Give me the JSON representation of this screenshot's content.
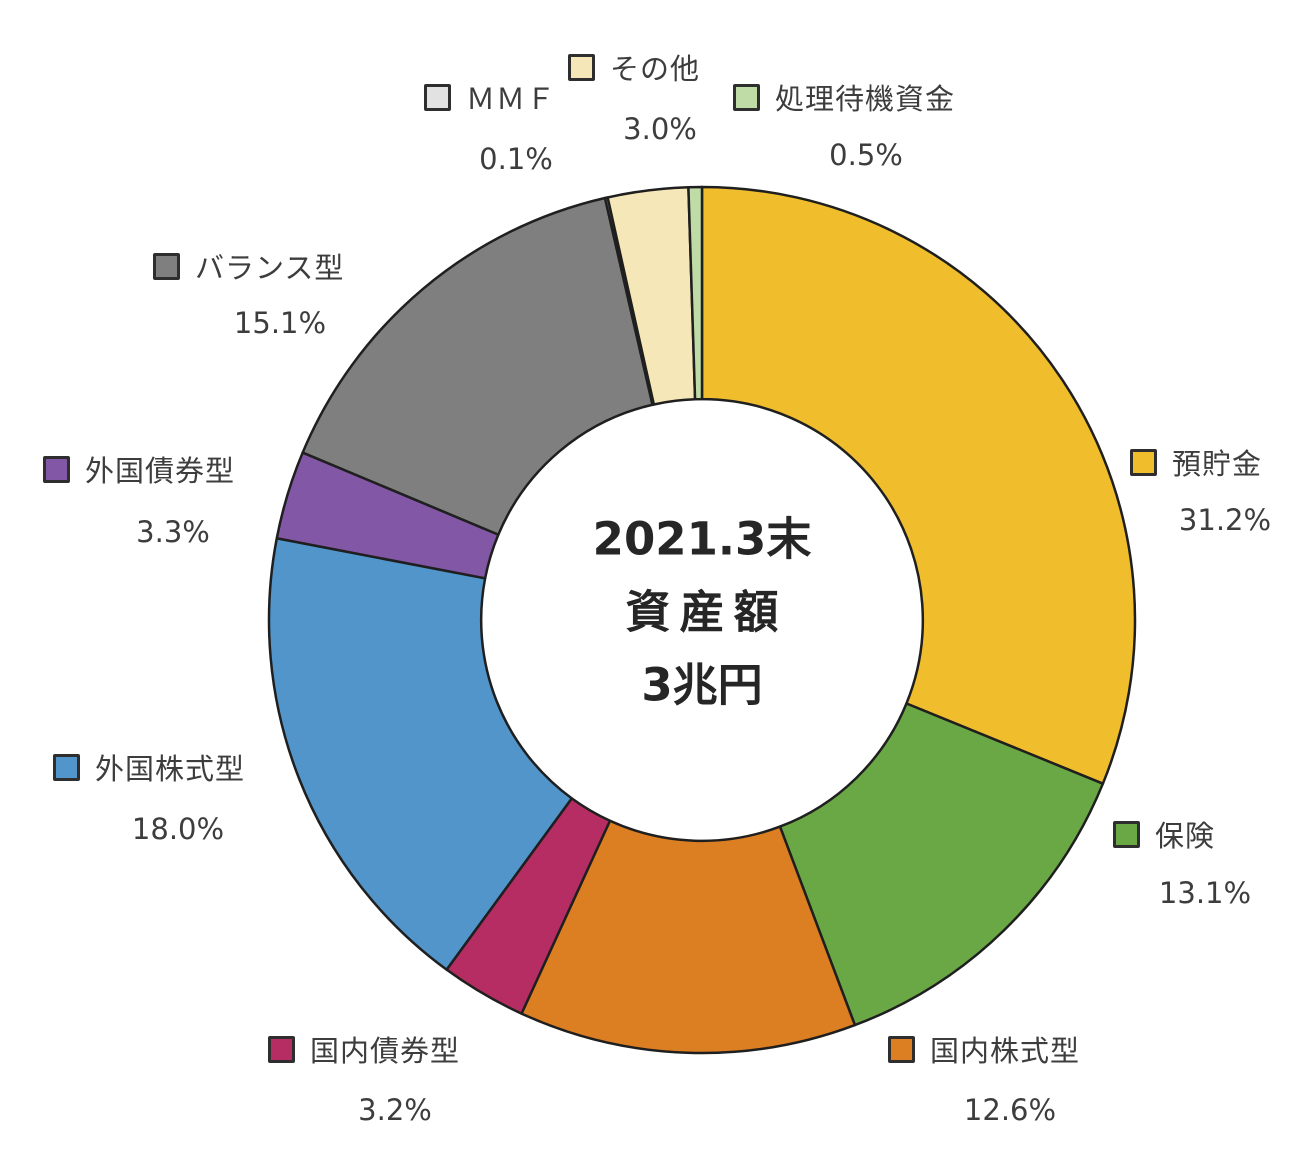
{
  "chart_data": {
    "type": "pie",
    "subtype": "donut",
    "title": "",
    "center_label": {
      "line1": "2021.3末",
      "line2": "資産額",
      "line3": "3兆円"
    },
    "slices": [
      {
        "label": "預貯金",
        "value": 31.2,
        "display": "31.2%",
        "color": "#F0BD2C"
      },
      {
        "label": "保険",
        "value": 13.1,
        "display": "13.1%",
        "color": "#6AA845"
      },
      {
        "label": "国内株式型",
        "value": 12.6,
        "display": "12.6%",
        "color": "#DC7E22"
      },
      {
        "label": "国内債券型",
        "value": 3.2,
        "display": "3.2%",
        "color": "#B52D62"
      },
      {
        "label": "外国株式型",
        "value": 18.0,
        "display": "18.0%",
        "color": "#5195CA"
      },
      {
        "label": "外国債券型",
        "value": 3.3,
        "display": "3.3%",
        "color": "#8157A6"
      },
      {
        "label": "バランス型",
        "value": 15.1,
        "display": "15.1%",
        "color": "#7F7F7F"
      },
      {
        "label": "ＭＭＦ",
        "value": 0.1,
        "display": "0.1%",
        "color": "#E2E2E2"
      },
      {
        "label": "その他",
        "value": 3.0,
        "display": "3.0%",
        "color": "#F5E7B7"
      },
      {
        "label": "処理待機資金",
        "value": 0.5,
        "display": "0.5%",
        "color": "#BFDBA6"
      }
    ],
    "layout": {
      "start_angle_deg": 0,
      "direction": "clockwise",
      "hole_ratio": 0.51,
      "stroke_color": "#1f1f1f",
      "stroke_width": 2.5,
      "legend_position": "around",
      "background": "#ffffff"
    }
  }
}
